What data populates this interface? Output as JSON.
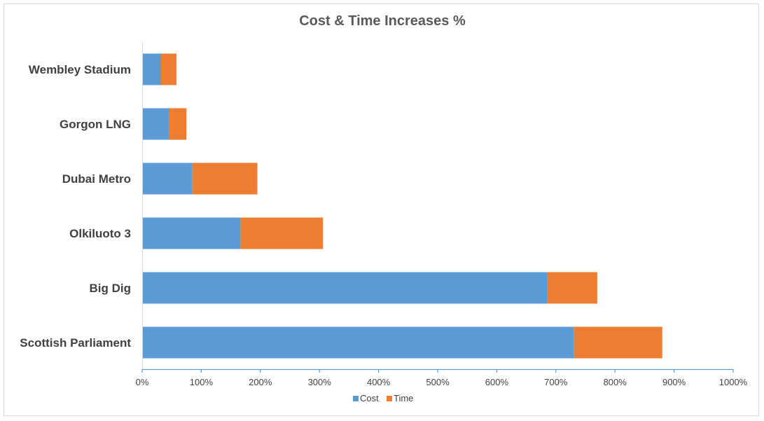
{
  "chart_data": {
    "type": "bar",
    "orientation": "horizontal",
    "stacked": true,
    "title": "Cost & Time Increases %",
    "xlabel": "",
    "ylabel": "",
    "categories": [
      "Wembley Stadium",
      "Gorgon LNG",
      "Dubai Metro",
      "Olkiluoto 3",
      "Big Dig",
      "Scottish Parliament"
    ],
    "series": [
      {
        "name": "Cost",
        "color": "#5b9bd5",
        "values": [
          32,
          45,
          85,
          166,
          685,
          730
        ]
      },
      {
        "name": "Time",
        "color": "#ed7d31",
        "values": [
          26,
          30,
          110,
          140,
          85,
          150
        ]
      }
    ],
    "xlim": [
      0,
      1000
    ],
    "xticks": [
      0,
      100,
      200,
      300,
      400,
      500,
      600,
      700,
      800,
      900,
      1000
    ],
    "xtick_labels": [
      "0%",
      "100%",
      "200%",
      "300%",
      "400%",
      "500%",
      "600%",
      "700%",
      "800%",
      "900%",
      "1000%"
    ],
    "grid": false,
    "legend": "bottom"
  }
}
